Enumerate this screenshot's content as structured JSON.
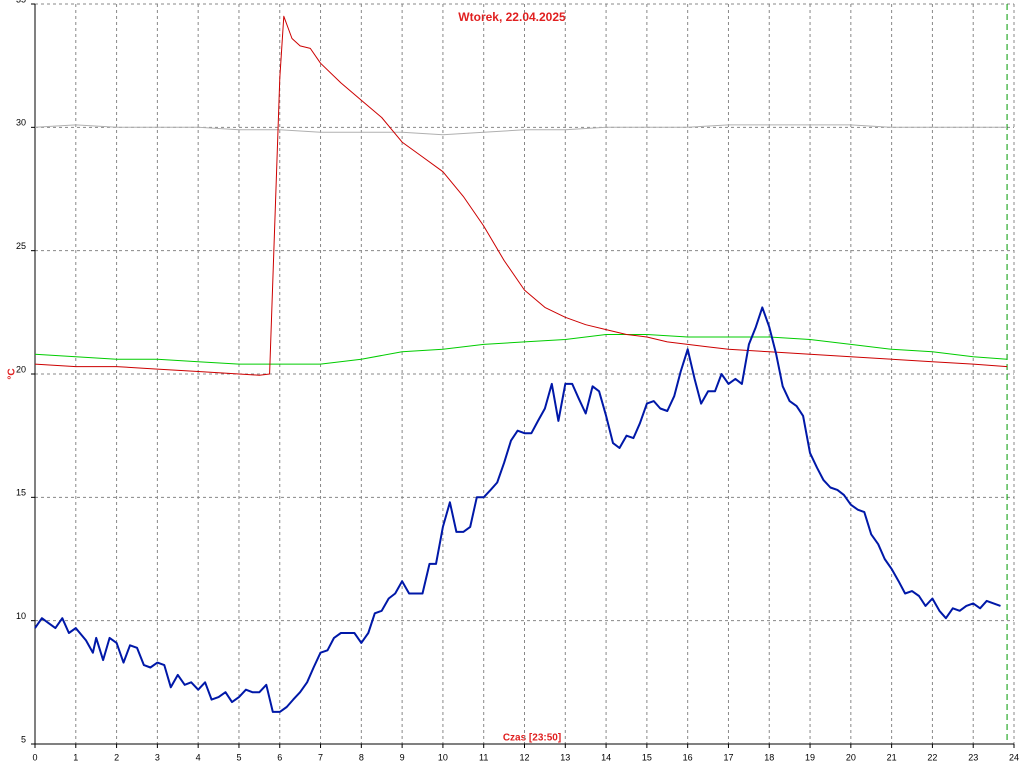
{
  "chart_data": {
    "type": "line",
    "title": "Wtorek, 22.04.2025",
    "x_label": "Czas [23:50]",
    "y_label": "°C",
    "xlim": [
      0,
      24
    ],
    "xticks": [
      0,
      1,
      2,
      3,
      4,
      5,
      6,
      7,
      8,
      9,
      10,
      11,
      12,
      13,
      14,
      15,
      16,
      17,
      18,
      19,
      20,
      21,
      22,
      23,
      24
    ],
    "ylim": [
      5,
      35
    ],
    "yticks": [
      5,
      10,
      15,
      20,
      25,
      30,
      35
    ],
    "grid": true,
    "time_marker": 23.83,
    "series": [
      {
        "color": "#b0b0b0",
        "width": 1,
        "x": [
          0,
          1,
          2,
          3,
          4,
          5,
          6,
          7,
          8,
          9,
          10,
          11,
          12,
          13,
          14,
          15,
          16,
          17,
          18,
          19,
          20,
          21,
          22,
          23,
          23.83
        ],
        "values": [
          30.0,
          30.1,
          30.0,
          30.0,
          30.0,
          29.9,
          29.9,
          29.8,
          29.8,
          29.8,
          29.7,
          29.8,
          29.9,
          29.9,
          30.0,
          30.0,
          30.0,
          30.1,
          30.1,
          30.1,
          30.1,
          30.0,
          30.0,
          30.0,
          30.0
        ]
      },
      {
        "color": "#00cc00",
        "width": 1,
        "x": [
          0,
          1,
          2,
          3,
          4,
          5,
          6,
          7,
          8,
          9,
          10,
          11,
          12,
          13,
          14,
          15,
          16,
          17,
          18,
          19,
          20,
          21,
          22,
          23,
          23.83
        ],
        "values": [
          20.8,
          20.7,
          20.6,
          20.6,
          20.5,
          20.4,
          20.4,
          20.4,
          20.6,
          20.9,
          21.0,
          21.2,
          21.3,
          21.4,
          21.6,
          21.6,
          21.5,
          21.5,
          21.5,
          21.4,
          21.2,
          21.0,
          20.9,
          20.7,
          20.6
        ]
      },
      {
        "color": "#cc0000",
        "width": 1,
        "x": [
          0,
          1,
          2,
          3,
          4,
          5,
          5.5,
          5.75,
          6.0,
          6.1,
          6.3,
          6.5,
          6.75,
          7.0,
          7.5,
          8.0,
          8.5,
          9.0,
          9.5,
          10.0,
          10.5,
          11.0,
          11.5,
          12.0,
          12.5,
          13.0,
          13.5,
          14.0,
          14.5,
          15.0,
          15.5,
          16.0,
          16.5,
          17,
          18,
          19,
          20,
          21,
          22,
          23,
          23.83
        ],
        "values": [
          20.4,
          20.3,
          20.3,
          20.2,
          20.1,
          20.0,
          19.95,
          20.0,
          32.0,
          34.5,
          33.6,
          33.3,
          33.2,
          32.6,
          31.8,
          31.1,
          30.4,
          29.4,
          28.8,
          28.2,
          27.2,
          26.0,
          24.6,
          23.4,
          22.7,
          22.3,
          22.0,
          21.8,
          21.6,
          21.5,
          21.3,
          21.2,
          21.1,
          21.0,
          20.9,
          20.8,
          20.7,
          20.6,
          20.5,
          20.4,
          20.3
        ]
      },
      {
        "color": "#0018a8",
        "width": 2,
        "x": [
          0,
          0.17,
          0.33,
          0.5,
          0.67,
          0.83,
          1.0,
          1.25,
          1.42,
          1.5,
          1.67,
          1.83,
          2.0,
          2.17,
          2.33,
          2.5,
          2.67,
          2.83,
          3.0,
          3.17,
          3.33,
          3.5,
          3.67,
          3.83,
          4.0,
          4.17,
          4.33,
          4.5,
          4.67,
          4.83,
          5.0,
          5.17,
          5.33,
          5.5,
          5.67,
          5.83,
          6.0,
          6.17,
          6.33,
          6.5,
          6.67,
          6.83,
          7.0,
          7.17,
          7.33,
          7.5,
          7.67,
          7.83,
          8.0,
          8.17,
          8.33,
          8.5,
          8.67,
          8.83,
          9.0,
          9.17,
          9.33,
          9.5,
          9.67,
          9.83,
          10.0,
          10.17,
          10.33,
          10.5,
          10.67,
          10.83,
          11.0,
          11.17,
          11.33,
          11.5,
          11.67,
          11.83,
          12.0,
          12.17,
          12.33,
          12.5,
          12.67,
          12.83,
          13.0,
          13.17,
          13.33,
          13.5,
          13.67,
          13.83,
          14.0,
          14.17,
          14.33,
          14.5,
          14.67,
          14.83,
          15.0,
          15.17,
          15.33,
          15.5,
          15.67,
          15.83,
          16.0,
          16.17,
          16.33,
          16.5,
          16.67,
          16.83,
          17.0,
          17.17,
          17.33,
          17.5,
          17.67,
          17.83,
          18.0,
          18.17,
          18.33,
          18.5,
          18.67,
          18.83,
          19.0,
          19.17,
          19.33,
          19.5,
          19.67,
          19.83,
          20.0,
          20.17,
          20.33,
          20.5,
          20.67,
          20.83,
          21.0,
          21.17,
          21.33,
          21.5,
          21.67,
          21.83,
          22.0,
          22.17,
          22.33,
          22.5,
          22.67,
          22.83,
          23.0,
          23.17,
          23.33,
          23.5,
          23.67
        ],
        "values": [
          9.7,
          10.1,
          9.9,
          9.7,
          10.1,
          9.5,
          9.7,
          9.2,
          8.7,
          9.3,
          8.4,
          9.3,
          9.1,
          8.3,
          9.0,
          8.9,
          8.2,
          8.1,
          8.3,
          8.2,
          7.3,
          7.8,
          7.4,
          7.5,
          7.2,
          7.5,
          6.8,
          6.9,
          7.1,
          6.7,
          6.9,
          7.2,
          7.1,
          7.1,
          7.4,
          6.3,
          6.3,
          6.5,
          6.8,
          7.1,
          7.5,
          8.1,
          8.7,
          8.8,
          9.3,
          9.5,
          9.5,
          9.5,
          9.1,
          9.5,
          10.3,
          10.4,
          10.9,
          11.1,
          11.6,
          11.1,
          11.1,
          11.1,
          12.3,
          12.3,
          13.8,
          14.8,
          13.6,
          13.6,
          13.8,
          15.0,
          15.0,
          15.3,
          15.6,
          16.4,
          17.3,
          17.7,
          17.6,
          17.6,
          18.1,
          18.6,
          19.6,
          18.1,
          19.6,
          19.6,
          19.0,
          18.4,
          19.5,
          19.3,
          18.3,
          17.2,
          17.0,
          17.5,
          17.4,
          18.0,
          18.8,
          18.9,
          18.6,
          18.5,
          19.1,
          20.1,
          21.0,
          19.8,
          18.8,
          19.3,
          19.3,
          20.0,
          19.6,
          19.8,
          19.6,
          21.2,
          21.9,
          22.7,
          21.9,
          20.8,
          19.5,
          18.9,
          18.7,
          18.3,
          16.8,
          16.2,
          15.7,
          15.4,
          15.3,
          15.1,
          14.7,
          14.5,
          14.4,
          13.5,
          13.1,
          12.5,
          12.1,
          11.6,
          11.1,
          11.2,
          11.0,
          10.6,
          10.9,
          10.4,
          10.1,
          10.5,
          10.4,
          10.6,
          10.7,
          10.5,
          10.8,
          10.7,
          10.6
        ]
      }
    ]
  }
}
